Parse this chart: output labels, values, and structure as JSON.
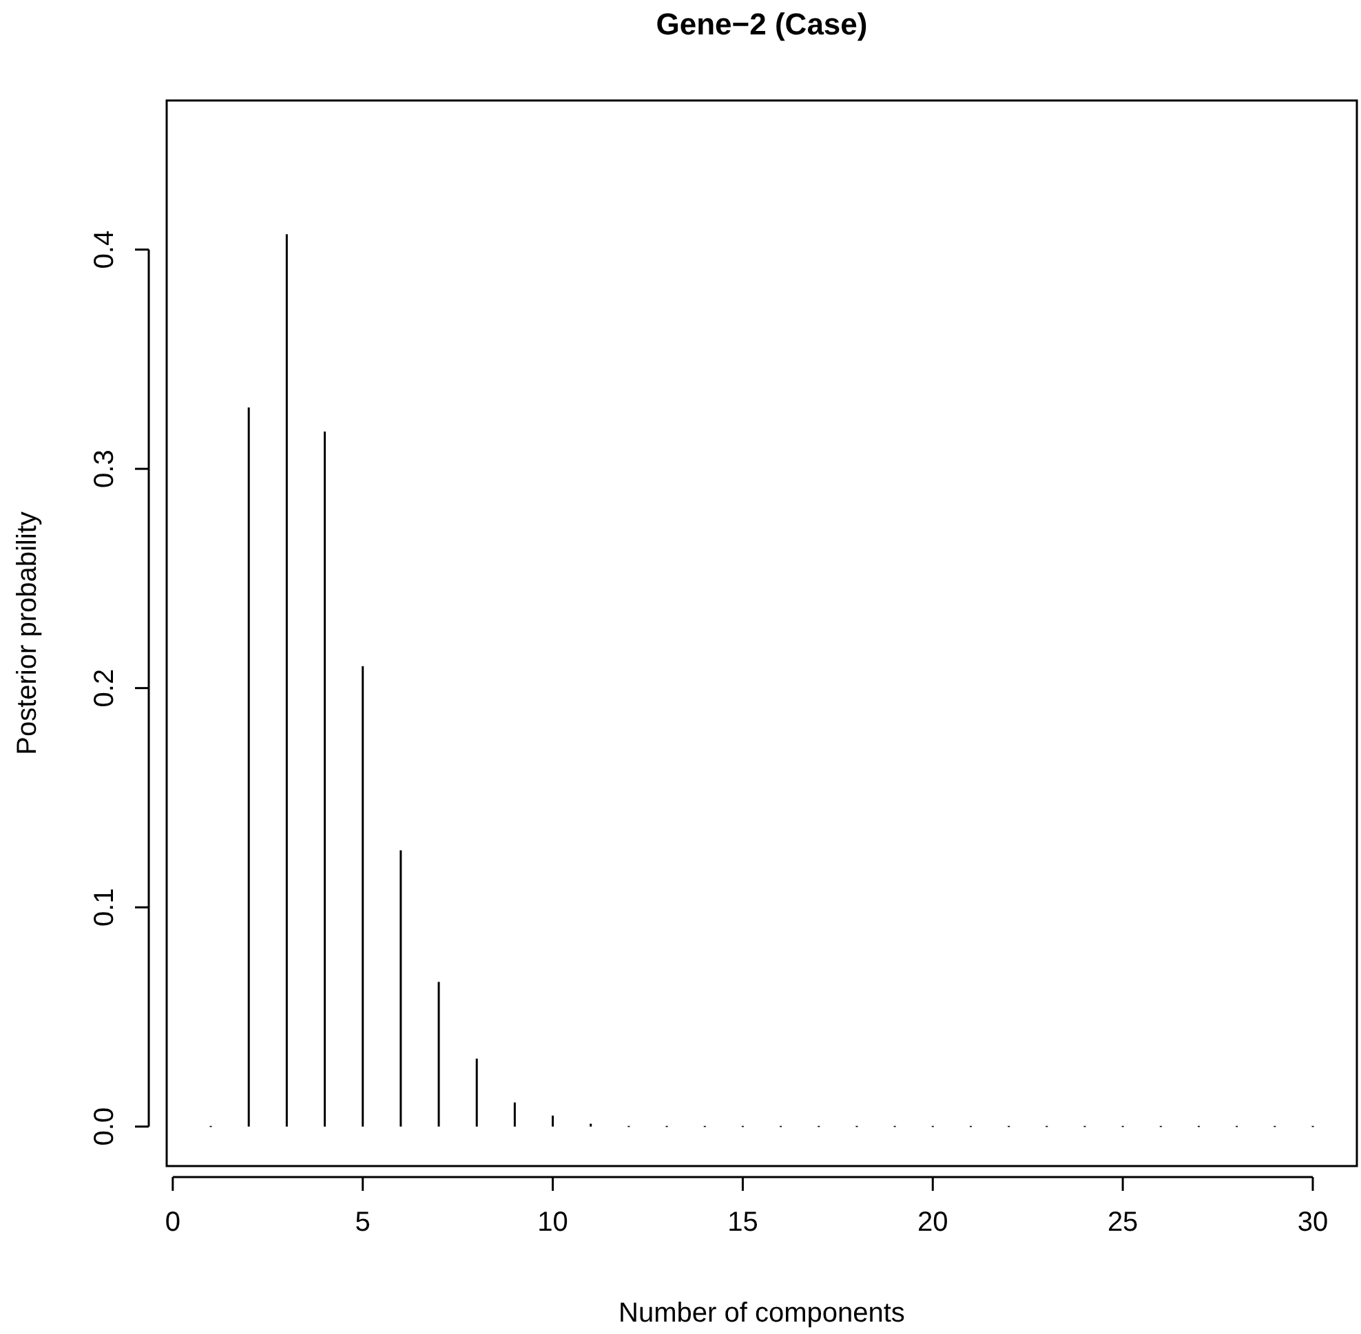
{
  "chart_data": {
    "type": "bar",
    "title": "Gene−2 (Case)",
    "xlabel": "Number of components",
    "ylabel": "Posterior probability",
    "x": [
      1,
      2,
      3,
      4,
      5,
      6,
      7,
      8,
      9,
      10,
      11,
      12,
      13,
      14,
      15,
      16,
      17,
      18,
      19,
      20,
      21,
      22,
      23,
      24,
      25,
      26,
      27,
      28,
      29,
      30
    ],
    "values": [
      0.0003,
      0.328,
      0.407,
      0.317,
      0.21,
      0.126,
      0.066,
      0.031,
      0.011,
      0.005,
      0.0013,
      0.0003,
      0.0003,
      0.0003,
      0.0003,
      0.0003,
      0.0003,
      0.0003,
      0.0003,
      0.0003,
      0.0003,
      0.0003,
      0.0003,
      0.0003,
      0.0003,
      0.0003,
      0.0003,
      0.0003,
      0.0003,
      0.0003
    ],
    "color": "#000000",
    "xlim": [
      -0.16,
      31.16
    ],
    "xticks": [
      0,
      5,
      10,
      15,
      20,
      25,
      30
    ],
    "ylim": [
      -0.018,
      0.468
    ],
    "yticks": [
      {
        "value": 0,
        "label": "0.0"
      },
      {
        "value": 0.1,
        "label": "0.1"
      },
      {
        "value": 0.2,
        "label": "0.2"
      },
      {
        "value": 0.3,
        "label": "0.3"
      },
      {
        "value": 0.4,
        "label": "0.4"
      }
    ]
  }
}
